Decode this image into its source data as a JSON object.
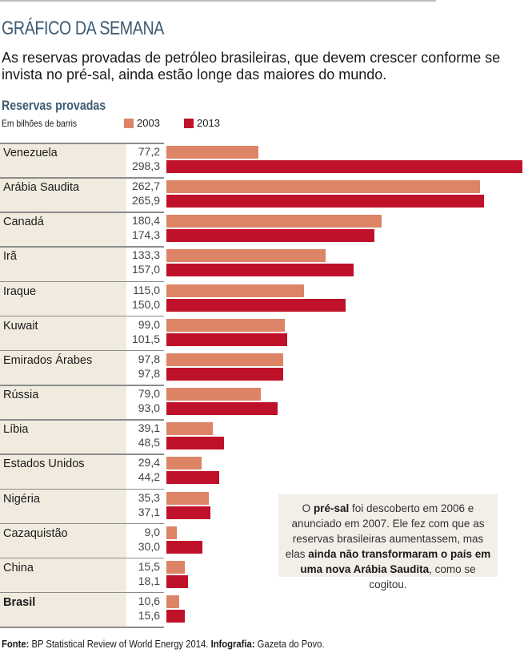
{
  "header": {
    "kicker": "GRÁFICO DA SEMANA",
    "lede": "As reservas provadas de petróleo brasileiras, que devem crescer conforme se invista no pré-sal, ainda estão longe das maiores do mundo."
  },
  "colors": {
    "series_2003": "#dd8466",
    "series_2013": "#c0112a",
    "title_blue": "#3d5a73",
    "label_column_bg": "#f1ebdf",
    "note_bg": "#f2efe8"
  },
  "chart_data": {
    "type": "bar",
    "orientation": "horizontal",
    "title": "Reservas provadas",
    "subtitle": "Em bilhões de barris",
    "xlabel": "",
    "ylabel": "",
    "xlim": [
      0,
      298.3
    ],
    "grid": false,
    "legend_position": "top-left",
    "categories": [
      "Venezuela",
      "Arábia Saudita",
      "Canadá",
      "Irã",
      "Iraque",
      "Kuwait",
      "Emirados Árabes",
      "Rússia",
      "Líbia",
      "Estados Unidos",
      "Nigéria",
      "Cazaquistão",
      "China",
      "Brasil"
    ],
    "highlighted_category": "Brasil",
    "series": [
      {
        "name": "2003",
        "values": [
          77.2,
          262.7,
          180.4,
          133.3,
          115.0,
          99.0,
          97.8,
          79.0,
          39.1,
          29.4,
          35.3,
          9.0,
          15.5,
          10.6
        ],
        "labels": [
          "77,2",
          "262,7",
          "180,4",
          "133,3",
          "115,0",
          "99,0",
          "97,8",
          "79,0",
          "39,1",
          "29,4",
          "35,3",
          "9,0",
          "15,5",
          "10,6"
        ]
      },
      {
        "name": "2013",
        "values": [
          298.3,
          265.9,
          174.3,
          157.0,
          150.0,
          101.5,
          97.8,
          93.0,
          48.5,
          44.2,
          37.1,
          30.0,
          18.1,
          15.6
        ],
        "labels": [
          "298,3",
          "265,9",
          "174,3",
          "157,0",
          "150,0",
          "101,5",
          "97,8",
          "93,0",
          "48,5",
          "44,2",
          "37,1",
          "30,0",
          "18,1",
          "15,6"
        ]
      }
    ],
    "annotation": {
      "parts": [
        {
          "text": "O ",
          "bold": false
        },
        {
          "text": "pré-sal",
          "bold": true
        },
        {
          "text": " foi descoberto em 2006 e anunciado em 2007. Ele fez com que as reservas brasileiras aumentassem, mas elas ",
          "bold": false
        },
        {
          "text": "ainda não transformaram o país em uma nova Arábia Saudita",
          "bold": true
        },
        {
          "text": ", como se cogitou.",
          "bold": false
        }
      ]
    }
  },
  "footer": {
    "source_label": "Fonte:",
    "source_text": " BP Statistical Review of World Energy 2014. ",
    "credit_label": "Infografia:",
    "credit_text": " Gazeta do Povo."
  }
}
